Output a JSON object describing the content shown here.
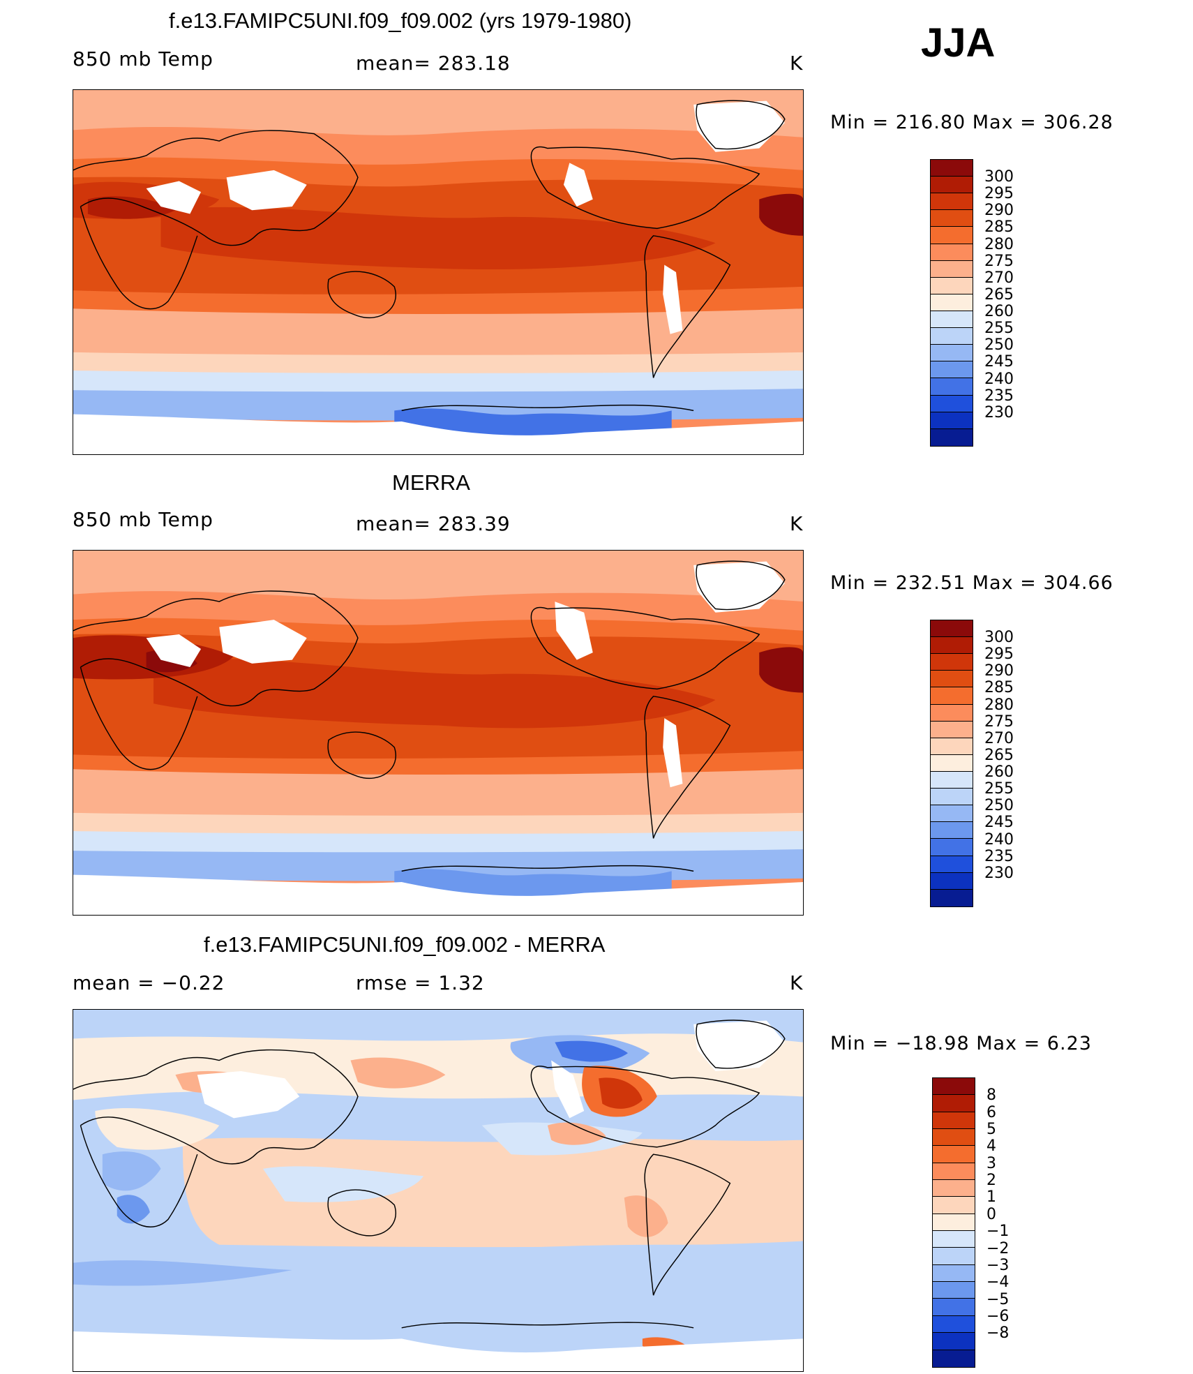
{
  "season": "JJA",
  "panels": [
    {
      "title": "f.e13.FAMIPC5UNI.f09_f09.002 (yrs 1979-1980)",
      "left_label": "850 mb Temp",
      "center_label": "mean= 283.18",
      "units": "K",
      "minmax": "Min = 216.80 Max = 306.28"
    },
    {
      "title": "MERRA",
      "left_label": "850 mb Temp",
      "center_label": "mean= 283.39",
      "units": "K",
      "minmax": "Min = 232.51 Max = 304.66"
    },
    {
      "title": "f.e13.FAMIPC5UNI.f09_f09.002 - MERRA",
      "left_label": "mean =   −0.22",
      "center_label": "rmse =    1.32",
      "units": "K",
      "minmax": "Min = −18.98 Max =    6.23"
    }
  ],
  "colorbars": {
    "temperature": {
      "labels": [
        "300",
        "295",
        "290",
        "285",
        "280",
        "275",
        "270",
        "265",
        "260",
        "255",
        "250",
        "245",
        "240",
        "235",
        "230"
      ],
      "colors": [
        "#8b0a0a",
        "#b01c05",
        "#d0360a",
        "#e04e12",
        "#f46d2e",
        "#fc8c5c",
        "#fcb08c",
        "#fdd6bc",
        "#fdeede",
        "#d6e6fa",
        "#bcd4f8",
        "#96b8f4",
        "#6c98ee",
        "#4272e6",
        "#1f50dc",
        "#0c32c0",
        "#071c92"
      ]
    },
    "difference": {
      "labels": [
        "8",
        "6",
        "5",
        "4",
        "3",
        "2",
        "1",
        "0",
        "−1",
        "−2",
        "−3",
        "−4",
        "−5",
        "−6",
        "−8"
      ],
      "colors": [
        "#8b0a0a",
        "#b01c05",
        "#d0360a",
        "#e04e12",
        "#f46d2e",
        "#fc8c5c",
        "#fcb08c",
        "#fdd6bc",
        "#fdeede",
        "#d6e6fa",
        "#bcd4f8",
        "#96b8f4",
        "#6c98ee",
        "#4272e6",
        "#1f50dc",
        "#0c32c0",
        "#071c92"
      ]
    }
  }
}
